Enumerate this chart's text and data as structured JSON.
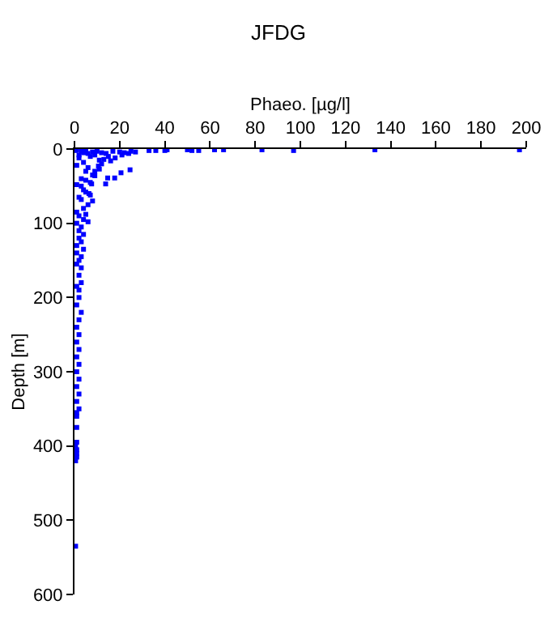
{
  "chart_data": {
    "type": "scatter",
    "title": "JFDG",
    "xlabel": "Phaeo. [µg/l]",
    "ylabel": "Depth [m]",
    "xlim": [
      0,
      200
    ],
    "xticks": [
      0,
      20,
      40,
      60,
      80,
      100,
      120,
      140,
      160,
      180,
      200
    ],
    "ylim": [
      600,
      0
    ],
    "yticks": [
      0,
      100,
      200,
      300,
      400,
      500,
      600
    ],
    "marker": "square",
    "series": [
      {
        "color": "#0000ff",
        "x": [
          197,
          133,
          97,
          83,
          66,
          62,
          55,
          52,
          50,
          41,
          40,
          36,
          33,
          27,
          25,
          24,
          22,
          21,
          20,
          18,
          17,
          15,
          14,
          12,
          11,
          10,
          9,
          8,
          7,
          6,
          5,
          4,
          3,
          2,
          1,
          0.5,
          24.6,
          20.6,
          17.8,
          14.7,
          13.8,
          10.6,
          7.6,
          6.4,
          12,
          9,
          8,
          6,
          5,
          4,
          3,
          2,
          1,
          16,
          13,
          11,
          9,
          7,
          5,
          4,
          3,
          2,
          1,
          8,
          7,
          6,
          5,
          4,
          3,
          2,
          1,
          6,
          5,
          4,
          3,
          2,
          1,
          4,
          3,
          2,
          1,
          4,
          3,
          2,
          1,
          3,
          2,
          1,
          3,
          2,
          1,
          2,
          1,
          3,
          2,
          1,
          2,
          1,
          2,
          1,
          2,
          1,
          2,
          1,
          2,
          1,
          2,
          1,
          1,
          1,
          1,
          0.5,
          1,
          1,
          1,
          0.5,
          0.5
        ],
        "values": [
          1,
          1,
          2,
          1,
          1,
          1,
          2,
          2,
          1,
          1,
          2,
          2,
          2,
          4,
          3,
          6,
          5,
          8,
          4,
          12,
          3,
          10,
          6,
          5,
          15,
          3,
          8,
          4,
          10,
          6,
          2,
          5,
          3,
          8,
          1,
          2,
          28,
          32,
          39,
          39,
          47,
          23,
          47,
          60,
          20,
          30,
          35,
          25,
          42,
          18,
          50,
          12,
          22,
          16,
          14,
          27,
          36,
          45,
          30,
          55,
          40,
          65,
          48,
          70,
          62,
          75,
          58,
          80,
          68,
          90,
          85,
          98,
          88,
          95,
          105,
          110,
          100,
          115,
          125,
          120,
          130,
          135,
          145,
          150,
          140,
          160,
          170,
          155,
          180,
          190,
          185,
          200,
          210,
          220,
          230,
          240,
          250,
          260,
          270,
          280,
          290,
          300,
          310,
          320,
          330,
          340,
          350,
          360,
          355,
          375,
          395,
          400,
          405,
          410,
          415,
          420,
          535
        ]
      }
    ]
  }
}
